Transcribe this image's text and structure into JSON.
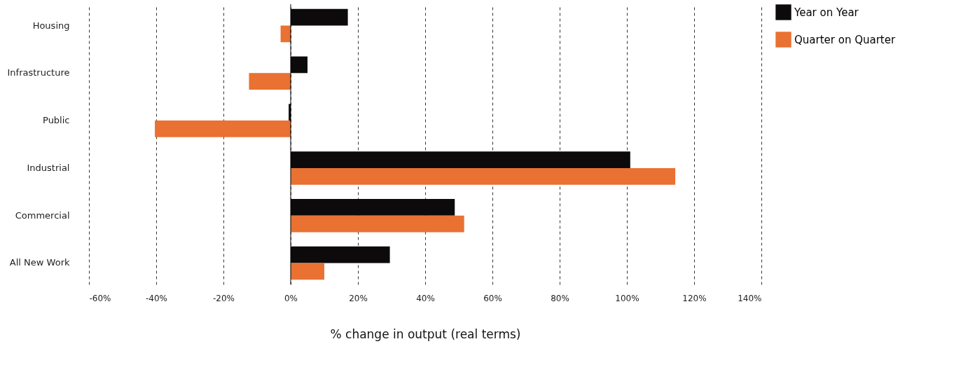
{
  "chart_data": {
    "type": "bar",
    "orientation": "horizontal",
    "xlabel": "% change in output (real terms)",
    "categories": [
      "Housing",
      "Infrastructure",
      "Public",
      "Industrial",
      "Commercial",
      "All New Work"
    ],
    "series": [
      {
        "name": "Year on Year",
        "color": "#0d0a0b",
        "values": [
          17,
          5,
          -0.6,
          101,
          48.8,
          29.5
        ]
      },
      {
        "name": "Quarter on Quarter",
        "color": "#e97132",
        "values": [
          -3,
          -12.4,
          -40.4,
          114.4,
          51.6,
          10
        ]
      }
    ],
    "xlim": [
      -60,
      140
    ],
    "xticks": [
      {
        "value": -60,
        "label": "-60%"
      },
      {
        "value": -40,
        "label": "-40%"
      },
      {
        "value": -20,
        "label": "-20%"
      },
      {
        "value": 0,
        "label": "0%"
      },
      {
        "value": 20,
        "label": "20%"
      },
      {
        "value": 40,
        "label": "40%"
      },
      {
        "value": 60,
        "label": "60%"
      },
      {
        "value": 80,
        "label": "80%"
      },
      {
        "value": 100,
        "label": "100%"
      },
      {
        "value": 120,
        "label": "120%"
      },
      {
        "value": 140,
        "label": "140%"
      }
    ],
    "grid": "x",
    "legend": "right",
    "ref_lines": [
      {
        "axis": "x",
        "value": 0,
        "color": "#000000",
        "line_style": "solid"
      }
    ]
  }
}
